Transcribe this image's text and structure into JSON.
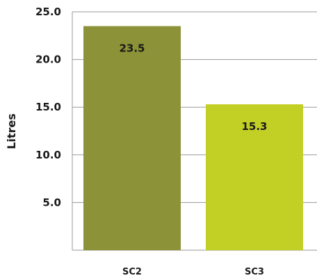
{
  "chart_data": {
    "type": "bar",
    "title": "",
    "xlabel": "",
    "ylabel": "Litres",
    "categories": [
      "SC2",
      "SC3"
    ],
    "values": [
      23.5,
      15.3
    ],
    "data_labels": [
      "23.5",
      "15.3"
    ],
    "ylim": [
      0,
      25
    ],
    "yticks": [
      5.0,
      10.0,
      15.0,
      20.0,
      25.0
    ],
    "ytick_labels": [
      "5.0",
      "10.0",
      "15.0",
      "20.0",
      "25.0"
    ],
    "grid": true,
    "legend": "none",
    "bar_colors": [
      "#8b9237",
      "#c2cf25"
    ]
  }
}
